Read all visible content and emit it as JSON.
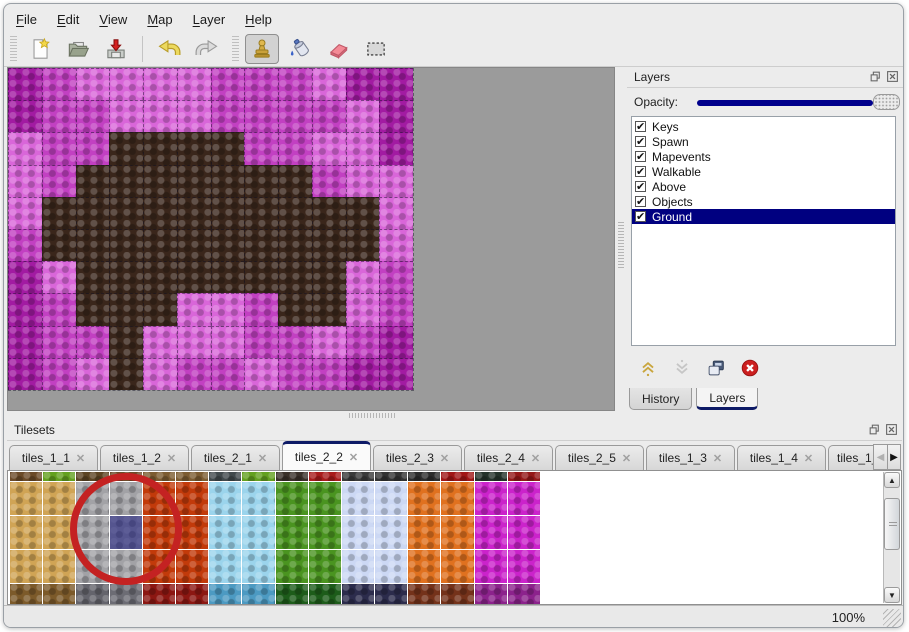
{
  "menu": {
    "items": [
      {
        "label": "File"
      },
      {
        "label": "Edit"
      },
      {
        "label": "View"
      },
      {
        "label": "Map"
      },
      {
        "label": "Layer"
      },
      {
        "label": "Help"
      }
    ]
  },
  "toolbar": {
    "buttons": [
      "new",
      "open",
      "save",
      "undo",
      "redo",
      "stamp",
      "fill",
      "eraser",
      "select"
    ],
    "selected_tool": "stamp"
  },
  "map_view": {
    "background": "#9b9b9b",
    "tile_grid": {
      "palette": {
        "a": "#a21ba2",
        "b": "#c240c2",
        "c": "#d966d9",
        "X": "#3a261b"
      },
      "rows": [
        "abccccbbbcaa",
        "abbcccbbbbca",
        "cbbXXXXbbcca",
        "cbXXXXXXXbcc",
        "cXXXXXXXXXXc",
        "bXXXXXXXXXXc",
        "acXXXXXXXXcb",
        "abXXXccbXXcb",
        "abbXcccbbcba",
        "abcXcbbcbbaa"
      ]
    }
  },
  "layers_panel": {
    "title": "Layers",
    "opacity_label": "Opacity:",
    "slider_color": "#00008c",
    "layers": [
      {
        "name": "Keys",
        "checked": true
      },
      {
        "name": "Spawn",
        "checked": true
      },
      {
        "name": "Mapevents",
        "checked": true
      },
      {
        "name": "Walkable",
        "checked": true
      },
      {
        "name": "Above",
        "checked": true
      },
      {
        "name": "Objects",
        "checked": true
      },
      {
        "name": "Ground",
        "checked": true,
        "selected": true
      }
    ],
    "selection_color": "#000080",
    "buttons": [
      "raise-layer",
      "lower-layer",
      "duplicate-layer",
      "delete-layer"
    ],
    "tabs": [
      {
        "label": "History"
      },
      {
        "label": "Layers",
        "active": true
      }
    ]
  },
  "tilesets_panel": {
    "title": "Tilesets",
    "tabs": [
      {
        "label": "tiles_1_1"
      },
      {
        "label": "tiles_1_2"
      },
      {
        "label": "tiles_2_1"
      },
      {
        "label": "tiles_2_2",
        "active": true
      },
      {
        "label": "tiles_2_3"
      },
      {
        "label": "tiles_2_4"
      },
      {
        "label": "tiles_2_5"
      },
      {
        "label": "tiles_1_3"
      },
      {
        "label": "tiles_1_4"
      },
      {
        "label": "tiles_1_",
        "truncated": true
      }
    ],
    "grid": {
      "columns": [
        "sand",
        "sand",
        "stone",
        "stone",
        "lava",
        "lava",
        "ice",
        "ice",
        "vine",
        "vine",
        "crystal",
        "crystal",
        "pebble",
        "pebble",
        "magenta",
        "magenta"
      ],
      "palette": {
        "sand": "#d0a455",
        "stone": "#a2a2a6",
        "lava": "#c23a0a",
        "ice": "#9bd4ec",
        "vine": "#4a9420",
        "crystal": "#ccd8f4",
        "pebble": "#e0711f",
        "magenta": "#cb23cb"
      },
      "top_strip": [
        "#6b4a28",
        "#63a01f",
        "#5c4423",
        "#6b4a28",
        "#7c5c31",
        "#7c5c31",
        "#41494c",
        "#63a01f",
        "#3a3029",
        "#a81b1b",
        "#3a3a3a",
        "#323232",
        "#2c2c2c",
        "#a01616",
        "#24322a",
        "#941818"
      ],
      "bottom_strip": [
        "#7c5a2a",
        "#7c5a2a",
        "#64646c",
        "#6c6c74",
        "#8c1712",
        "#8c1712",
        "#4c9ac2",
        "#4c9ac2",
        "#1d5c1a",
        "#1d5c1a",
        "#2c2c4c",
        "#2c2c4c",
        "#74321a",
        "#74321a",
        "#8c228c",
        "#8c228c"
      ],
      "selected_cell": {
        "row": 1,
        "col": 3
      },
      "selection_color": "rgba(30,30,125,0.58)"
    },
    "annotation": {
      "shape": "circle",
      "color": "#c42222"
    }
  },
  "status_bar": {
    "zoom_level": "100%"
  }
}
